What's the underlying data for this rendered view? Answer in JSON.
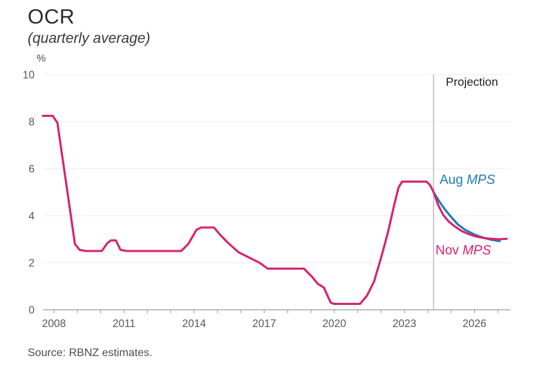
{
  "header": {
    "title": "OCR",
    "subtitle": "(quarterly average)"
  },
  "axis_unit": "%",
  "projection_label": "Projection",
  "series_labels": {
    "aug_prefix": "Aug",
    "aug_suffix": "MPS",
    "nov_prefix": "Nov",
    "nov_suffix": "MPS"
  },
  "source": "Source: RBNZ estimates.",
  "colors": {
    "pink": "#d5246e",
    "blue": "#2379bd",
    "grid": "#ececec",
    "axis": "#9a9a9a",
    "divider": "#aeaeae",
    "tick_text": "#58595b"
  },
  "chart_data": {
    "type": "line",
    "title": "OCR",
    "subtitle": "(quarterly average)",
    "ylabel": "%",
    "xlabel": "",
    "ylim": [
      0,
      10
    ],
    "xlim": [
      2007.5,
      2027.5
    ],
    "grid": "horizontal",
    "y_ticks": [
      0,
      2,
      4,
      6,
      8,
      10
    ],
    "x_tick_label_years": [
      2008,
      2011,
      2014,
      2017,
      2020,
      2023,
      2026
    ],
    "x_minor_tick_years": [
      2008,
      2009,
      2010,
      2011,
      2012,
      2013,
      2014,
      2015,
      2016,
      2017,
      2018,
      2019,
      2020,
      2021,
      2022,
      2023,
      2024,
      2025,
      2026,
      2027
    ],
    "projection_divider_year": 2024.25,
    "annotations": [
      "Projection",
      "Aug MPS",
      "Nov MPS"
    ],
    "legend_position": "inline-labels",
    "series": [
      {
        "name": "OCR historical",
        "color": "#d5246e",
        "points": [
          [
            2007.53,
            8.25
          ],
          [
            2007.95,
            8.25
          ],
          [
            2008.15,
            7.95
          ],
          [
            2008.9,
            2.8
          ],
          [
            2009.1,
            2.55
          ],
          [
            2009.35,
            2.5
          ],
          [
            2010.05,
            2.5
          ],
          [
            2010.3,
            2.85
          ],
          [
            2010.45,
            2.95
          ],
          [
            2010.65,
            2.95
          ],
          [
            2010.85,
            2.55
          ],
          [
            2011.1,
            2.5
          ],
          [
            2013.45,
            2.5
          ],
          [
            2013.75,
            2.8
          ],
          [
            2014.1,
            3.4
          ],
          [
            2014.3,
            3.5
          ],
          [
            2014.85,
            3.5
          ],
          [
            2015.15,
            3.15
          ],
          [
            2015.45,
            2.85
          ],
          [
            2015.9,
            2.45
          ],
          [
            2016.4,
            2.2
          ],
          [
            2016.8,
            2.0
          ],
          [
            2017.15,
            1.75
          ],
          [
            2018.7,
            1.75
          ],
          [
            2019.05,
            1.4
          ],
          [
            2019.3,
            1.1
          ],
          [
            2019.55,
            0.95
          ],
          [
            2019.85,
            0.3
          ],
          [
            2020.0,
            0.25
          ],
          [
            2021.1,
            0.25
          ],
          [
            2021.4,
            0.6
          ],
          [
            2021.7,
            1.2
          ],
          [
            2022.0,
            2.2
          ],
          [
            2022.3,
            3.3
          ],
          [
            2022.55,
            4.4
          ],
          [
            2022.75,
            5.2
          ],
          [
            2022.9,
            5.45
          ],
          [
            2023.95,
            5.45
          ],
          [
            2024.1,
            5.3
          ],
          [
            2024.25,
            5.0
          ]
        ]
      },
      {
        "name": "Aug MPS projection",
        "color": "#2379bd",
        "points": [
          [
            2024.25,
            5.0
          ],
          [
            2024.5,
            4.6
          ],
          [
            2024.75,
            4.25
          ],
          [
            2025.0,
            3.95
          ],
          [
            2025.3,
            3.62
          ],
          [
            2025.6,
            3.4
          ],
          [
            2026.0,
            3.2
          ],
          [
            2026.4,
            3.06
          ],
          [
            2026.75,
            2.97
          ],
          [
            2027.08,
            2.92
          ]
        ]
      },
      {
        "name": "Nov MPS projection",
        "color": "#d5246e",
        "points": [
          [
            2024.25,
            5.0
          ],
          [
            2024.45,
            4.45
          ],
          [
            2024.65,
            4.05
          ],
          [
            2024.9,
            3.75
          ],
          [
            2025.15,
            3.55
          ],
          [
            2025.45,
            3.35
          ],
          [
            2025.75,
            3.22
          ],
          [
            2026.05,
            3.12
          ],
          [
            2026.35,
            3.06
          ],
          [
            2026.7,
            3.02
          ],
          [
            2027.05,
            3.0
          ],
          [
            2027.38,
            3.02
          ]
        ]
      }
    ],
    "source": "Source: RBNZ estimates."
  }
}
